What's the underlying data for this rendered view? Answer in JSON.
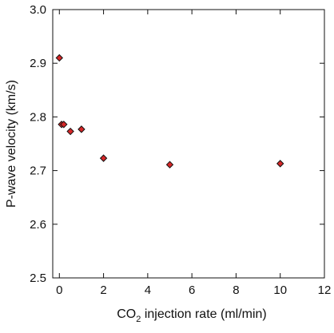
{
  "chart_data": {
    "type": "scatter",
    "title": "",
    "xlabel": {
      "prefix": "CO",
      "subscript": "2",
      "suffix": " injection rate (ml/min)"
    },
    "ylabel": "P-wave velocity (km/s)",
    "xlim": [
      -0.3,
      12
    ],
    "ylim": [
      2.5,
      3.0
    ],
    "xticks": [
      0,
      2,
      4,
      6,
      8,
      10,
      12
    ],
    "yticks": [
      2.5,
      2.6,
      2.7,
      2.8,
      2.9,
      3.0
    ],
    "xtick_labels": [
      "0",
      "2",
      "4",
      "6",
      "8",
      "10",
      "12"
    ],
    "ytick_labels": [
      "2.5",
      "2.6",
      "2.7",
      "2.8",
      "2.9",
      "3.0"
    ],
    "grid": false,
    "marker": "diamond",
    "marker_color": "#d62728",
    "points": [
      {
        "x": 0.0,
        "y": 2.91
      },
      {
        "x": 0.1,
        "y": 2.786
      },
      {
        "x": 0.2,
        "y": 2.786
      },
      {
        "x": 0.5,
        "y": 2.773
      },
      {
        "x": 1.0,
        "y": 2.777
      },
      {
        "x": 2.0,
        "y": 2.723
      },
      {
        "x": 5.0,
        "y": 2.711
      },
      {
        "x": 10.0,
        "y": 2.713
      }
    ]
  }
}
